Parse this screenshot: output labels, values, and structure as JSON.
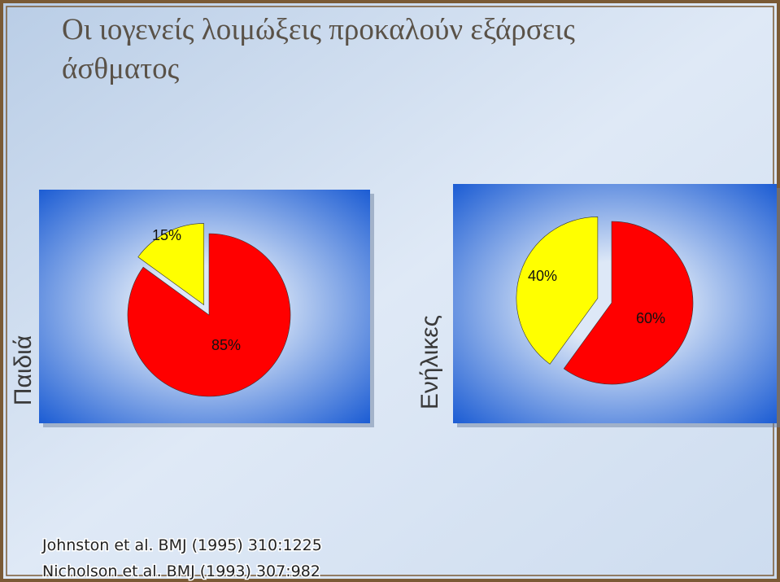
{
  "title": "Οι ιογενείς λοιμώξεις προκαλούν εξάρσεις άσθματος",
  "references": [
    "Johnston et al. BMJ (1995) 310:1225",
    "Nicholson et al. BMJ (1993) 307:982"
  ],
  "chart_data": [
    {
      "type": "pie",
      "label": "Παιδιά",
      "values": [
        15,
        85
      ],
      "value_labels": [
        "15%",
        "85%"
      ],
      "colors": [
        "#ffff00",
        "#ff0000"
      ]
    },
    {
      "type": "pie",
      "label": "Ενήλικες",
      "values": [
        40,
        60
      ],
      "value_labels": [
        "40%",
        "60%"
      ],
      "colors": [
        "#ffff00",
        "#ff0000"
      ]
    }
  ]
}
